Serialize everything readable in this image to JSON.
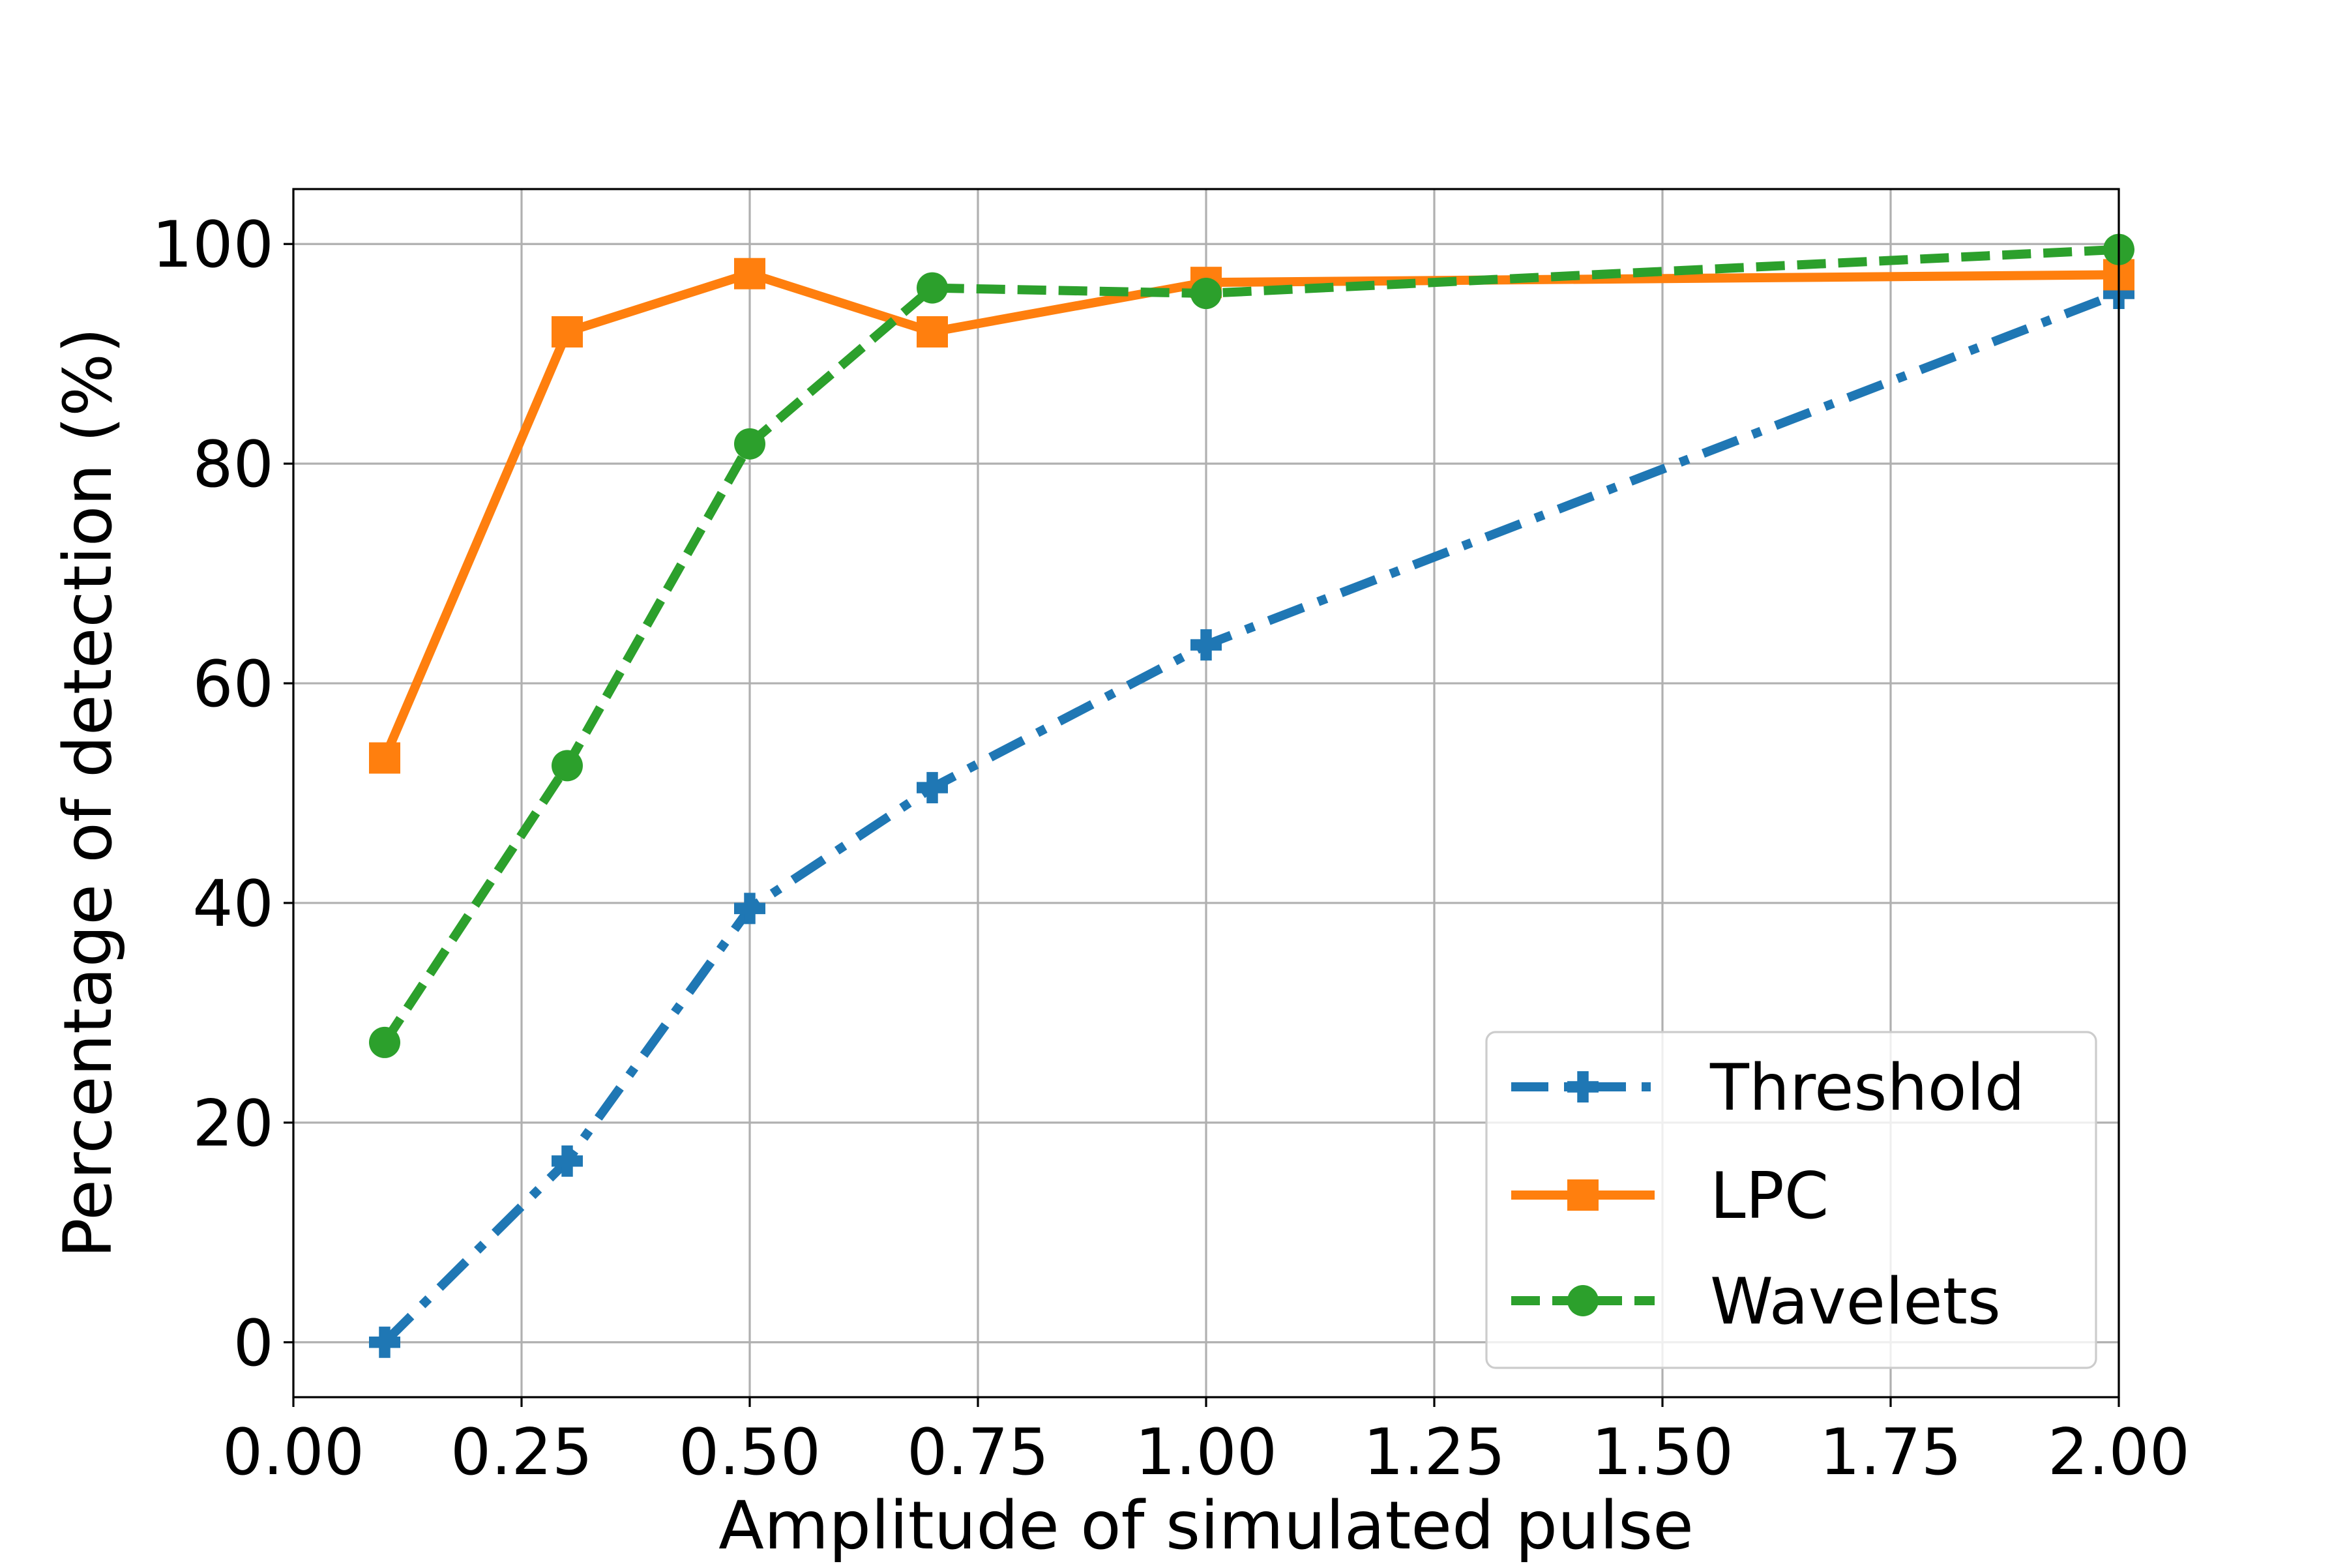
{
  "chart_data": {
    "type": "line",
    "title": "",
    "xlabel": "Amplitude of simulated pulse",
    "ylabel": "Percentage of detection (%)",
    "xlim": [
      0.0,
      2.0
    ],
    "ylim": [
      -5,
      105
    ],
    "x_ticks": [
      "0.00",
      "0.25",
      "0.50",
      "0.75",
      "1.00",
      "1.25",
      "1.50",
      "1.75",
      "2.00"
    ],
    "y_ticks": [
      "0",
      "20",
      "40",
      "60",
      "80",
      "100"
    ],
    "grid": true,
    "legend_position": "lower-right",
    "x": [
      0.1,
      0.3,
      0.5,
      0.7,
      1.0,
      2.0
    ],
    "series": [
      {
        "name": "Threshold",
        "color": "#1f77b4",
        "linestyle": "dashdot",
        "marker": "plus-filled",
        "values": [
          0.0,
          16.5,
          39.5,
          50.5,
          63.5,
          95.5
        ]
      },
      {
        "name": "LPC",
        "color": "#ff7f0e",
        "linestyle": "solid",
        "marker": "square",
        "values": [
          53.2,
          92.0,
          97.3,
          92.0,
          96.5,
          97.2
        ]
      },
      {
        "name": "Wavelets",
        "color": "#2ca02c",
        "linestyle": "dashed",
        "marker": "circle",
        "values": [
          27.3,
          52.5,
          81.8,
          96.0,
          95.5,
          99.5
        ]
      }
    ]
  }
}
